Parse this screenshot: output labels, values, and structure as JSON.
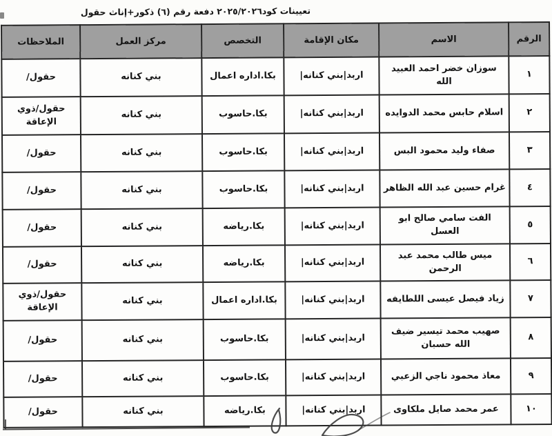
{
  "title": "تعيينات كود٢٠٢٥/٢٠٢٦ دفعة رقم (٦) ذكور+إناث حقول",
  "table": {
    "headers": [
      "الرقم",
      "الاسم",
      "مكان الإقامة",
      "التخصص",
      "مركز العمل",
      "الملاحظات"
    ],
    "rows": [
      {
        "num": "١",
        "name": "سوزان خضر احمد العبيد الله",
        "residence": "اربد|بني كنانه|",
        "specialization": "بكا.اداره اعمال",
        "work_center": "بني كنانه",
        "notes": "حقول/"
      },
      {
        "num": "٢",
        "name": "اسلام حابس محمد الدوايده",
        "residence": "اربد|بني كنانه|",
        "specialization": "بكا.حاسوب",
        "work_center": "بني كنانه",
        "notes": "حقول/ذوي الإعاقة"
      },
      {
        "num": "٣",
        "name": "صفاء وليد محمود البس",
        "residence": "اربد|بني كنانه|",
        "specialization": "بكا.حاسوب",
        "work_center": "بني كنانه",
        "notes": "حقول/"
      },
      {
        "num": "٤",
        "name": "غرام حسين عبد الله الظاهر",
        "residence": "اربد|بني كنانه|",
        "specialization": "بكا.حاسوب",
        "work_center": "بني كنانه",
        "notes": "حقول/"
      },
      {
        "num": "٥",
        "name": "الفت سامي صالح ابو العسل",
        "residence": "اربد|بني كنانه|",
        "specialization": "بكا.رياضه",
        "work_center": "بني كنانه",
        "notes": "حقول/"
      },
      {
        "num": "٦",
        "name": "ميس طالب محمد عبد الرحمن",
        "residence": "اربد|بني كنانه|",
        "specialization": "بكا.رياضه",
        "work_center": "بني كنانه",
        "notes": "حقول/"
      },
      {
        "num": "٧",
        "name": "زياد فيصل عيسى اللطايفه",
        "residence": "اربد|بني كنانه|",
        "specialization": "بكا.اداره اعمال",
        "work_center": "بني كنانه",
        "notes": "حقول/ذوي الإعاقة"
      },
      {
        "num": "٨",
        "name": "صهيب محمد تيسير ضيف الله حسبان",
        "residence": "اربد|بني كنانه|",
        "specialization": "بكا.حاسوب",
        "work_center": "بني كنانه",
        "notes": "حقول/"
      },
      {
        "num": "٩",
        "name": "معاذ محمود ناجي الزعبي",
        "residence": "اربد|بني كنانه|",
        "specialization": "بكا.حاسوب",
        "work_center": "بني كنانه",
        "notes": "حقول/"
      },
      {
        "num": "١٠",
        "name": "عمر محمد صايل ملكاوى",
        "residence": "اربد|بني كنانه|",
        "specialization": "بكا.رياضه",
        "work_center": "بني كنانه",
        "notes": "حقول/"
      }
    ]
  },
  "colors": {
    "header_bg": "#9f9f9f",
    "border": "#242424",
    "ink": "#141414",
    "page_bg": "#fcfcfa",
    "pen": "#3a3a3a"
  }
}
